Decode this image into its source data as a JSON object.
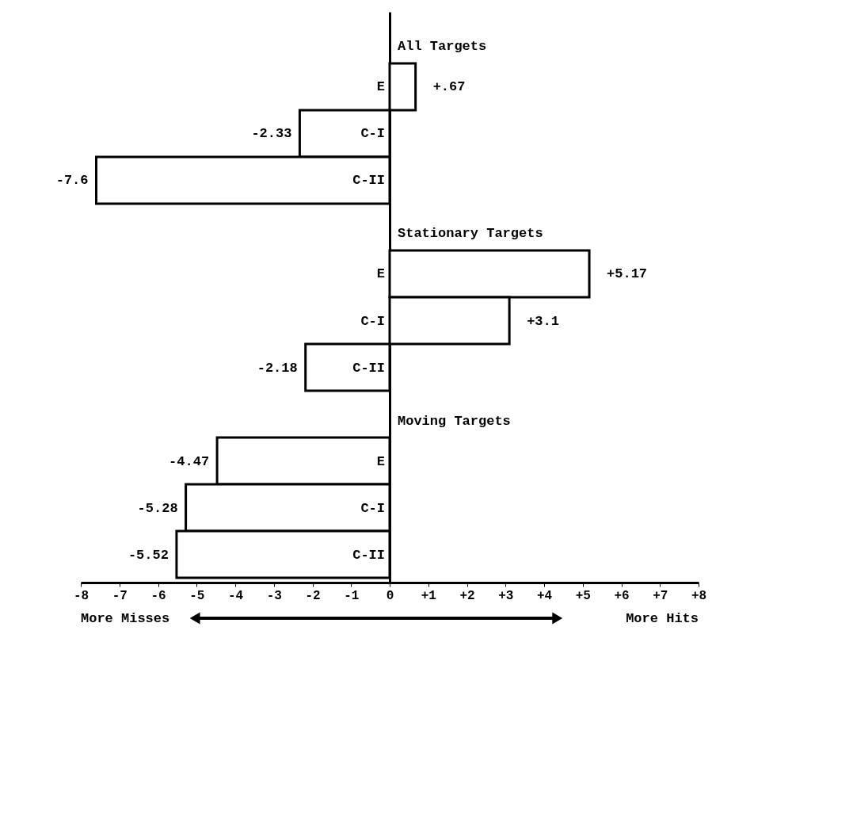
{
  "chart_data": {
    "type": "bar",
    "orientation": "horizontal",
    "categories": [
      null,
      "E",
      "C-I",
      "C-II",
      null,
      "E",
      "C-I",
      "C-II",
      null,
      "E",
      "C-I",
      "C-II"
    ],
    "values": [
      null,
      0.67,
      -2.33,
      -7.6,
      null,
      5.17,
      3.1,
      -2.18,
      null,
      -4.47,
      -5.28,
      -5.52
    ],
    "value_labels": [
      null,
      "+.67",
      "-2.33",
      "-7.6",
      null,
      "+5.17",
      "+3.1",
      "-2.18",
      null,
      "-4.47",
      "-5.28",
      "-5.52"
    ],
    "color": "#ffffff",
    "xlim": [
      -8,
      8
    ],
    "xticks": [
      -8,
      -7,
      -6,
      -5,
      -4,
      -3,
      -2,
      -1,
      0,
      {
        "value": 1,
        "label": "+1"
      },
      {
        "value": 2,
        "label": "+2"
      },
      {
        "value": 3,
        "label": "+3"
      },
      {
        "value": 4,
        "label": "+4"
      },
      {
        "value": 5,
        "label": "+5"
      },
      {
        "value": 6,
        "label": "+6"
      },
      {
        "value": 7,
        "label": "+7"
      },
      {
        "value": 8,
        "label": "+8"
      }
    ],
    "tick_labels": "x",
    "grid": false,
    "annotations": [
      "All Targets",
      "Stationary Targets",
      "Moving Targets",
      "More Misses",
      "More Hits"
    ]
  }
}
